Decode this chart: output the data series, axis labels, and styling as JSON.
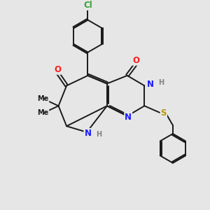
{
  "bg_color": "#e6e6e6",
  "bond_color": "#1a1a1a",
  "bond_width": 1.4,
  "atom_colors": {
    "C": "#1a1a1a",
    "N": "#1a1aff",
    "O": "#ff1a1a",
    "S": "#b8960a",
    "Cl": "#38a038",
    "H": "#808080"
  },
  "font_size": 8.5,
  "fig_size": [
    3.0,
    3.0
  ],
  "dpi": 100
}
